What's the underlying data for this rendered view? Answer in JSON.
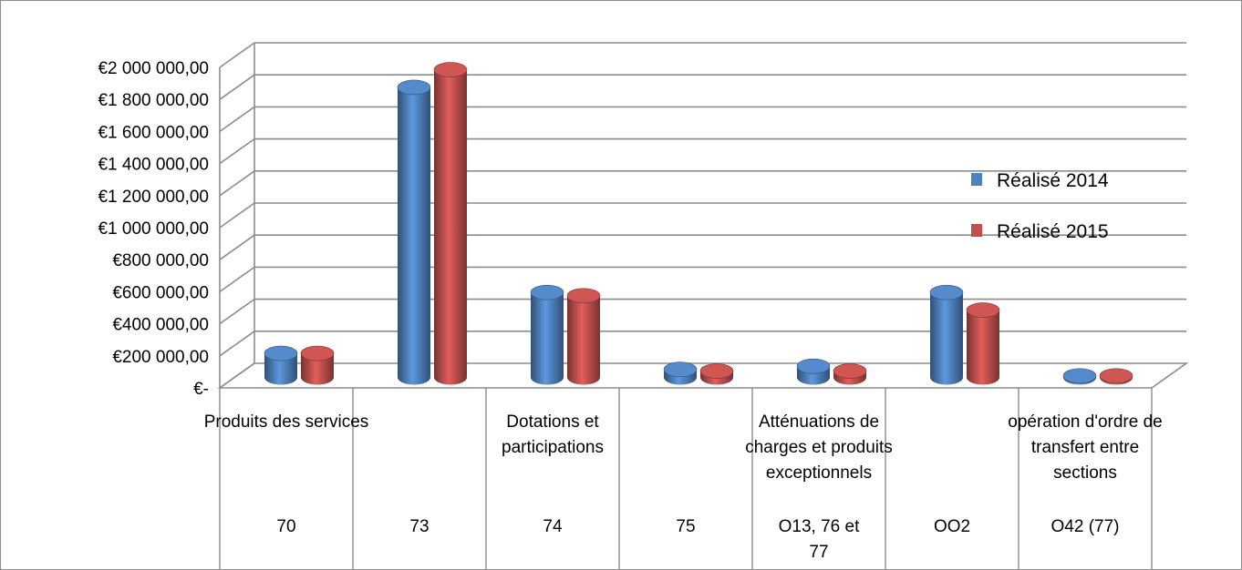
{
  "chart_data": {
    "type": "bar",
    "title": "",
    "xlabel": "",
    "ylabel": "",
    "ylim": [
      0,
      2000000
    ],
    "grid": true,
    "legend_position": "right",
    "y_ticks": [
      {
        "value": 0,
        "label": "€-"
      },
      {
        "value": 200000,
        "label": "€200 000,00"
      },
      {
        "value": 400000,
        "label": "€400 000,00"
      },
      {
        "value": 600000,
        "label": "€600 000,00"
      },
      {
        "value": 800000,
        "label": "€800 000,00"
      },
      {
        "value": 1000000,
        "label": "€1 000 000,00"
      },
      {
        "value": 1200000,
        "label": "€1 200 000,00"
      },
      {
        "value": 1400000,
        "label": "€1 400 000,00"
      },
      {
        "value": 1600000,
        "label": "€1 600 000,00"
      },
      {
        "value": 1800000,
        "label": "€1 800 000,00"
      },
      {
        "value": 2000000,
        "label": "€2 000 000,00"
      }
    ],
    "categories": [
      {
        "name_lines": [
          "Produits des services"
        ],
        "code_lines": [
          "70"
        ]
      },
      {
        "name_lines": [],
        "code_lines": [
          "73"
        ]
      },
      {
        "name_lines": [
          "Dotations et",
          "participations"
        ],
        "code_lines": [
          "74"
        ]
      },
      {
        "name_lines": [],
        "code_lines": [
          "75"
        ]
      },
      {
        "name_lines": [
          "Atténuations de",
          "charges et produits",
          "exceptionnels"
        ],
        "code_lines": [
          "O13, 76 et",
          "77"
        ]
      },
      {
        "name_lines": [],
        "code_lines": [
          "OO2"
        ]
      },
      {
        "name_lines": [
          "opération d'ordre de",
          "transfert entre",
          "sections"
        ],
        "code_lines": [
          "O42  (77)"
        ]
      }
    ],
    "series": [
      {
        "name": "Réalisé 2014",
        "color": "#4f81bd",
        "values": [
          150000,
          1810000,
          530000,
          50000,
          70000,
          530000,
          10000
        ]
      },
      {
        "name": "Réalisé 2015",
        "color": "#c0504d",
        "values": [
          150000,
          1920000,
          510000,
          40000,
          40000,
          420000,
          10000
        ]
      }
    ]
  }
}
